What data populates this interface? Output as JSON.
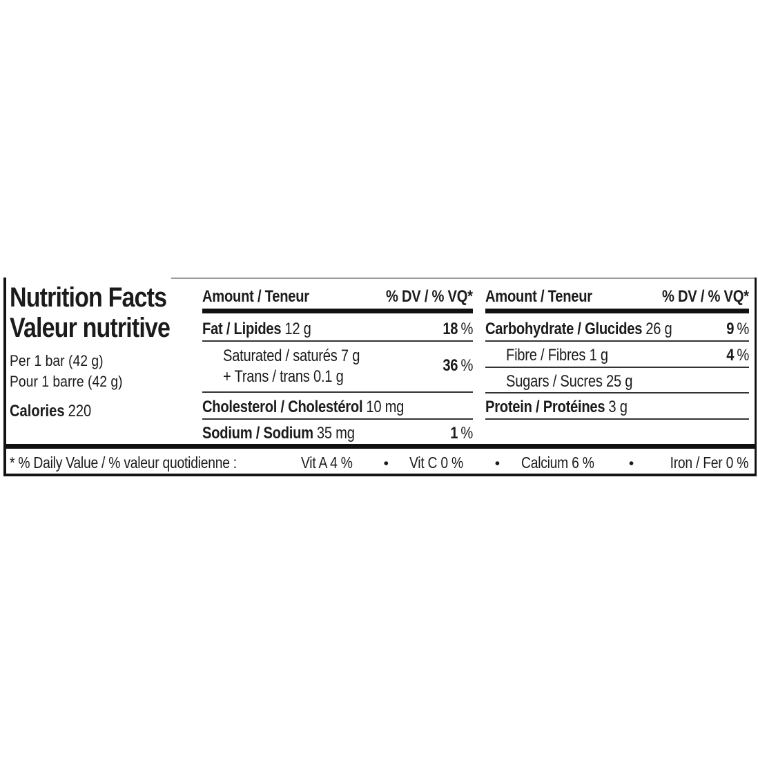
{
  "label": {
    "title_en": "Nutrition Facts",
    "title_fr": "Valeur nutritive",
    "serving_en": "Per 1 bar (42 g)",
    "serving_fr": "Pour 1 barre (42 g)",
    "calories_label": "Calories",
    "calories_value": "220"
  },
  "columns": {
    "mid": {
      "header_amount": "Amount / Teneur",
      "header_dv": "% DV / % VQ*",
      "fat": {
        "name": "Fat / Lipides",
        "value": "12 g",
        "dv": "18",
        "pct": "%"
      },
      "saturated": {
        "line1": "Saturated / saturés 7 g",
        "line2": "+ Trans / trans 0.1 g",
        "dv": "36",
        "pct": "%"
      },
      "cholesterol": {
        "name": "Cholesterol / Cholestérol",
        "value": "10 mg"
      },
      "sodium": {
        "name": "Sodium / Sodium",
        "value": "35 mg",
        "dv": "1",
        "pct": "%"
      }
    },
    "right": {
      "header_amount": "Amount / Teneur",
      "header_dv": "% DV / % VQ*",
      "carbohydrate": {
        "name": "Carbohydrate / Glucides",
        "value": "26 g",
        "dv": "9",
        "pct": "%"
      },
      "fibre": {
        "name": "Fibre / Fibres 1 g",
        "dv": "4",
        "pct": "%"
      },
      "sugars": {
        "name": "Sugars / Sucres 25 g"
      },
      "protein": {
        "name": "Protein / Protéines",
        "value": "3 g"
      }
    }
  },
  "footnote": {
    "prefix": "* % Daily Value / % valeur quotidienne :",
    "items": [
      "Vit A 4 %",
      "Vit C 0 %",
      "Calcium 6 %",
      "Iron / Fer 0 %"
    ],
    "bullet": "•"
  },
  "colors": {
    "text": "#1b1b1b",
    "border": "#141414",
    "thick_bar": "#111111",
    "thin_rule": "#333333",
    "top_line": "#9c9c9c",
    "background": "#ffffff"
  }
}
